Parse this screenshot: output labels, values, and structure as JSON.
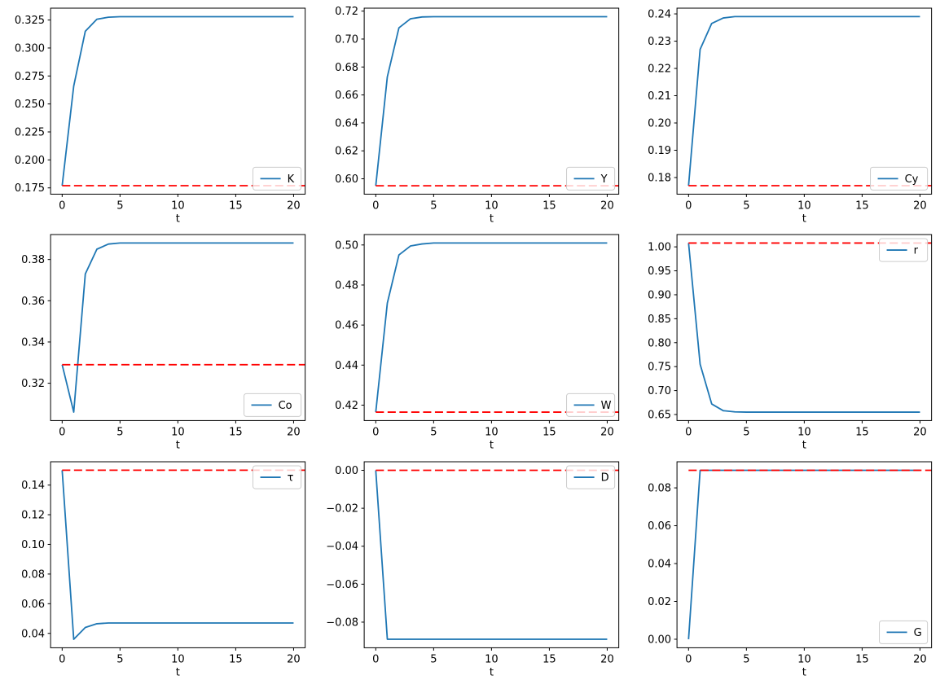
{
  "figure": {
    "background": "#ffffff",
    "rows": 3,
    "cols": 3
  },
  "chart_data": {
    "type": "line",
    "layout": "3x3-grid",
    "grid": false,
    "xlabel": "t",
    "x": [
      0,
      1,
      2,
      3,
      4,
      5,
      6,
      7,
      8,
      9,
      10,
      11,
      12,
      13,
      14,
      15,
      16,
      17,
      18,
      19,
      20
    ],
    "x_ticks": [
      0,
      5,
      10,
      15,
      20
    ],
    "xlim": [
      -1,
      21
    ],
    "series_color": "#1f77b4",
    "steady_state_color": "#ff0000",
    "steady_state_style": "dashed",
    "subplots": [
      {
        "id": "k",
        "legend_label": "K",
        "legend_pos": "lower-right",
        "values": [
          0.177,
          0.266,
          0.315,
          0.3257,
          0.3275,
          0.328,
          0.328,
          0.328,
          0.328,
          0.328,
          0.328,
          0.328,
          0.328,
          0.328,
          0.328,
          0.328,
          0.328,
          0.328,
          0.328,
          0.328,
          0.328
        ],
        "steady_state": 0.177,
        "ylim": [
          0.1694,
          0.3356
        ],
        "y_ticks": [
          0.175,
          0.2,
          0.225,
          0.25,
          0.275,
          0.3,
          0.325
        ],
        "y_tick_labels": [
          "0.175",
          "0.200",
          "0.225",
          "0.250",
          "0.275",
          "0.300",
          "0.325"
        ]
      },
      {
        "id": "y",
        "legend_label": "Y",
        "legend_pos": "lower-right",
        "values": [
          0.595,
          0.673,
          0.708,
          0.7145,
          0.7158,
          0.716,
          0.716,
          0.716,
          0.716,
          0.716,
          0.716,
          0.716,
          0.716,
          0.716,
          0.716,
          0.716,
          0.716,
          0.716,
          0.716,
          0.716,
          0.716
        ],
        "steady_state": 0.595,
        "ylim": [
          0.589,
          0.7221
        ],
        "y_ticks": [
          0.6,
          0.62,
          0.64,
          0.66,
          0.68,
          0.7,
          0.72
        ],
        "y_tick_labels": [
          "0.60",
          "0.62",
          "0.64",
          "0.66",
          "0.68",
          "0.70",
          "0.72"
        ]
      },
      {
        "id": "cy",
        "legend_label": "Cy",
        "legend_pos": "lower-right",
        "values": [
          0.177,
          0.227,
          0.2365,
          0.2385,
          0.239,
          0.239,
          0.239,
          0.239,
          0.239,
          0.239,
          0.239,
          0.239,
          0.239,
          0.239,
          0.239,
          0.239,
          0.239,
          0.239,
          0.239,
          0.239,
          0.239
        ],
        "steady_state": 0.177,
        "ylim": [
          0.1739,
          0.2421
        ],
        "y_ticks": [
          0.18,
          0.19,
          0.2,
          0.21,
          0.22,
          0.23,
          0.24
        ],
        "y_tick_labels": [
          "0.18",
          "0.19",
          "0.20",
          "0.21",
          "0.22",
          "0.23",
          "0.24"
        ]
      },
      {
        "id": "co",
        "legend_label": "Co",
        "legend_pos": "lower-right",
        "values": [
          0.329,
          0.306,
          0.373,
          0.385,
          0.3875,
          0.388,
          0.388,
          0.388,
          0.388,
          0.388,
          0.388,
          0.388,
          0.388,
          0.388,
          0.388,
          0.388,
          0.388,
          0.388,
          0.388,
          0.388,
          0.388
        ],
        "steady_state": 0.329,
        "ylim": [
          0.3019,
          0.3921
        ],
        "y_ticks": [
          0.32,
          0.34,
          0.36,
          0.38
        ],
        "y_tick_labels": [
          "0.32",
          "0.34",
          "0.36",
          "0.38"
        ]
      },
      {
        "id": "w",
        "legend_label": "W",
        "legend_pos": "lower-right",
        "values": [
          0.4165,
          0.471,
          0.495,
          0.4995,
          0.5005,
          0.501,
          0.501,
          0.501,
          0.501,
          0.501,
          0.501,
          0.501,
          0.501,
          0.501,
          0.501,
          0.501,
          0.501,
          0.501,
          0.501,
          0.501,
          0.501
        ],
        "steady_state": 0.4165,
        "ylim": [
          0.4123,
          0.5052
        ],
        "y_ticks": [
          0.42,
          0.44,
          0.46,
          0.48,
          0.5
        ],
        "y_tick_labels": [
          "0.42",
          "0.44",
          "0.46",
          "0.48",
          "0.50"
        ]
      },
      {
        "id": "r",
        "legend_label": "r",
        "legend_pos": "upper-right",
        "values": [
          1.008,
          0.755,
          0.672,
          0.658,
          0.6555,
          0.655,
          0.655,
          0.655,
          0.655,
          0.655,
          0.655,
          0.655,
          0.655,
          0.655,
          0.655,
          0.655,
          0.655,
          0.655,
          0.655,
          0.655,
          0.655
        ],
        "steady_state": 1.008,
        "ylim": [
          0.6374,
          1.0257
        ],
        "y_ticks": [
          0.65,
          0.7,
          0.75,
          0.8,
          0.85,
          0.9,
          0.95,
          1.0
        ],
        "y_tick_labels": [
          "0.65",
          "0.70",
          "0.75",
          "0.80",
          "0.85",
          "0.90",
          "0.95",
          "1.00"
        ]
      },
      {
        "id": "tau",
        "legend_label": "τ",
        "legend_pos": "upper-right",
        "values": [
          0.15,
          0.036,
          0.044,
          0.0465,
          0.047,
          0.047,
          0.047,
          0.047,
          0.047,
          0.047,
          0.047,
          0.047,
          0.047,
          0.047,
          0.047,
          0.047,
          0.047,
          0.047,
          0.047,
          0.047,
          0.047
        ],
        "steady_state": 0.15,
        "ylim": [
          0.0303,
          0.1557
        ],
        "y_ticks": [
          0.04,
          0.06,
          0.08,
          0.1,
          0.12,
          0.14
        ],
        "y_tick_labels": [
          "0.04",
          "0.06",
          "0.08",
          "0.10",
          "0.12",
          "0.14"
        ]
      },
      {
        "id": "d",
        "legend_label": "D",
        "legend_pos": "upper-right",
        "values": [
          0.0,
          -0.089,
          -0.089,
          -0.089,
          -0.089,
          -0.089,
          -0.089,
          -0.089,
          -0.089,
          -0.089,
          -0.089,
          -0.089,
          -0.089,
          -0.089,
          -0.089,
          -0.089,
          -0.089,
          -0.089,
          -0.089,
          -0.089,
          -0.089
        ],
        "steady_state": 0.0,
        "ylim": [
          -0.0935,
          0.0045
        ],
        "y_ticks": [
          0.0,
          -0.02,
          -0.04,
          -0.06,
          -0.08
        ],
        "y_tick_labels": [
          "0.00",
          "−0.02",
          "−0.04",
          "−0.06",
          "−0.08"
        ]
      },
      {
        "id": "g",
        "legend_label": "G",
        "legend_pos": "lower-right",
        "values": [
          0.0,
          0.0893,
          0.0893,
          0.0893,
          0.0893,
          0.0893,
          0.0893,
          0.0893,
          0.0893,
          0.0893,
          0.0893,
          0.0893,
          0.0893,
          0.0893,
          0.0893,
          0.0893,
          0.0893,
          0.0893,
          0.0893,
          0.0893,
          0.0893
        ],
        "steady_state": 0.0893,
        "ylim": [
          -0.0045,
          0.0938
        ],
        "y_ticks": [
          0.0,
          0.02,
          0.04,
          0.06,
          0.08
        ],
        "y_tick_labels": [
          "0.00",
          "0.02",
          "0.04",
          "0.06",
          "0.08"
        ]
      }
    ]
  }
}
